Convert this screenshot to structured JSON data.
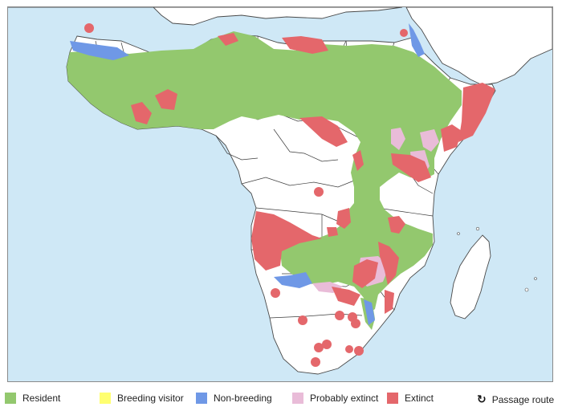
{
  "legend": {
    "resident": "Resident",
    "breeding_visitor": "Breeding visitor",
    "non_breeding": "Non-breeding",
    "probably_extinct": "Probably extinct",
    "extinct": "Extinct",
    "passage_route": "Passage route"
  },
  "colors": {
    "sea": "#cfe8f6",
    "land": "#ffffff",
    "resident": "#93c86e",
    "breeding_visitor": "#ffff70",
    "non_breeding": "#6f98e6",
    "probably_extinct": "#e9bcd8",
    "extinct": "#e4676b"
  },
  "icons": {
    "passage_route": "circular-arrow-icon"
  }
}
